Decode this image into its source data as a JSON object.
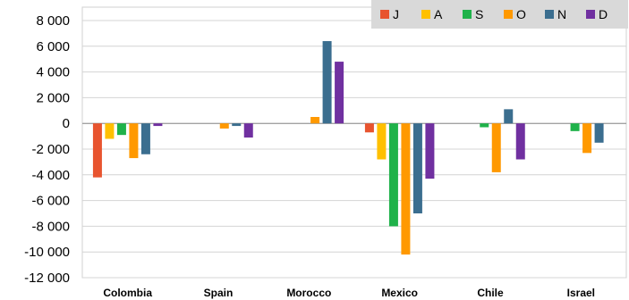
{
  "chart_data": {
    "type": "bar",
    "categories": [
      "Colombia",
      "Spain",
      "Morocco",
      "Mexico",
      "Chile",
      "Israel"
    ],
    "series": [
      {
        "name": "J",
        "color": "#e8542f",
        "values": [
          -4200,
          0,
          0,
          -700,
          0,
          0
        ]
      },
      {
        "name": "A",
        "color": "#ffc000",
        "values": [
          -1200,
          0,
          0,
          -2800,
          0,
          0
        ]
      },
      {
        "name": "S",
        "color": "#1fb24a",
        "values": [
          -900,
          0,
          0,
          -8000,
          -300,
          -600
        ]
      },
      {
        "name": "O",
        "color": "#ff9900",
        "values": [
          -2700,
          -400,
          500,
          -10200,
          -3800,
          -2300
        ]
      },
      {
        "name": "N",
        "color": "#3b6e8f",
        "values": [
          -2400,
          -200,
          6400,
          -7000,
          1100,
          -1500
        ]
      },
      {
        "name": "D",
        "color": "#7030a0",
        "values": [
          -200,
          -1100,
          4800,
          -4300,
          -2800,
          0
        ]
      }
    ],
    "ylim": [
      -12000,
      8000
    ],
    "yticks": [
      8000,
      6000,
      4000,
      2000,
      0,
      -2000,
      -4000,
      -6000,
      -8000,
      -10000,
      -12000
    ],
    "ytick_labels": [
      "8 000",
      "6 000",
      "4 000",
      "2 000",
      "0",
      "-2 000",
      "-4 000",
      "-6 000",
      "-8 000",
      "-10 000",
      "-12 000"
    ],
    "title": "",
    "xlabel": "",
    "ylabel": "",
    "grid": true,
    "legend_position": "top-right"
  }
}
